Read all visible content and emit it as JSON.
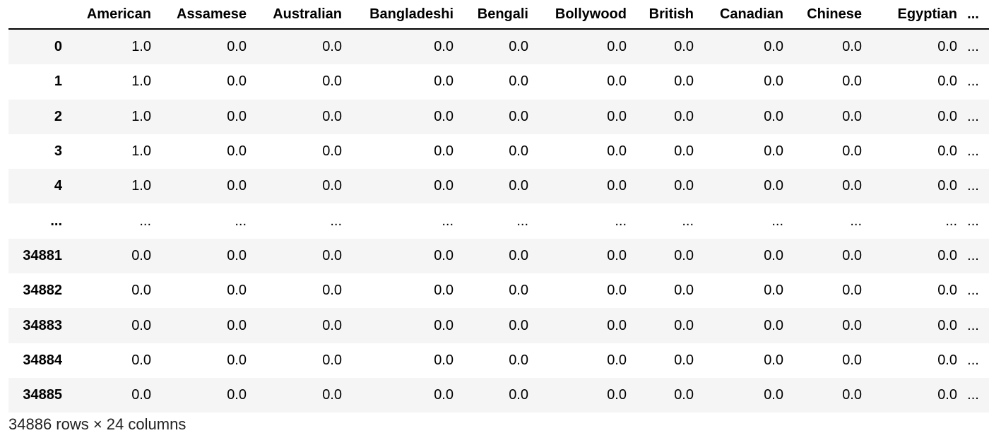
{
  "dataframe": {
    "index_header": "",
    "columns": [
      "American",
      "Assamese",
      "Australian",
      "Bangladeshi",
      "Bengali",
      "Bollywood",
      "British",
      "Canadian",
      "Chinese",
      "Egyptian",
      "..."
    ],
    "rows": [
      {
        "index": "0",
        "cells": [
          "1.0",
          "0.0",
          "0.0",
          "0.0",
          "0.0",
          "0.0",
          "0.0",
          "0.0",
          "0.0",
          "0.0",
          "..."
        ]
      },
      {
        "index": "1",
        "cells": [
          "1.0",
          "0.0",
          "0.0",
          "0.0",
          "0.0",
          "0.0",
          "0.0",
          "0.0",
          "0.0",
          "0.0",
          "..."
        ]
      },
      {
        "index": "2",
        "cells": [
          "1.0",
          "0.0",
          "0.0",
          "0.0",
          "0.0",
          "0.0",
          "0.0",
          "0.0",
          "0.0",
          "0.0",
          "..."
        ]
      },
      {
        "index": "3",
        "cells": [
          "1.0",
          "0.0",
          "0.0",
          "0.0",
          "0.0",
          "0.0",
          "0.0",
          "0.0",
          "0.0",
          "0.0",
          "..."
        ]
      },
      {
        "index": "4",
        "cells": [
          "1.0",
          "0.0",
          "0.0",
          "0.0",
          "0.0",
          "0.0",
          "0.0",
          "0.0",
          "0.0",
          "0.0",
          "..."
        ]
      },
      {
        "index": "...",
        "cells": [
          "...",
          "...",
          "...",
          "...",
          "...",
          "...",
          "...",
          "...",
          "...",
          "...",
          "..."
        ]
      },
      {
        "index": "34881",
        "cells": [
          "0.0",
          "0.0",
          "0.0",
          "0.0",
          "0.0",
          "0.0",
          "0.0",
          "0.0",
          "0.0",
          "0.0",
          "..."
        ]
      },
      {
        "index": "34882",
        "cells": [
          "0.0",
          "0.0",
          "0.0",
          "0.0",
          "0.0",
          "0.0",
          "0.0",
          "0.0",
          "0.0",
          "0.0",
          "..."
        ]
      },
      {
        "index": "34883",
        "cells": [
          "0.0",
          "0.0",
          "0.0",
          "0.0",
          "0.0",
          "0.0",
          "0.0",
          "0.0",
          "0.0",
          "0.0",
          "..."
        ]
      },
      {
        "index": "34884",
        "cells": [
          "0.0",
          "0.0",
          "0.0",
          "0.0",
          "0.0",
          "0.0",
          "0.0",
          "0.0",
          "0.0",
          "0.0",
          "..."
        ]
      },
      {
        "index": "34885",
        "cells": [
          "0.0",
          "0.0",
          "0.0",
          "0.0",
          "0.0",
          "0.0",
          "0.0",
          "0.0",
          "0.0",
          "0.0",
          "..."
        ]
      }
    ],
    "shape_text": "34886 rows × 24 columns"
  },
  "colors": {
    "striped_row": "#f5f5f5",
    "header_rule": "#000000",
    "text": "#000000"
  }
}
